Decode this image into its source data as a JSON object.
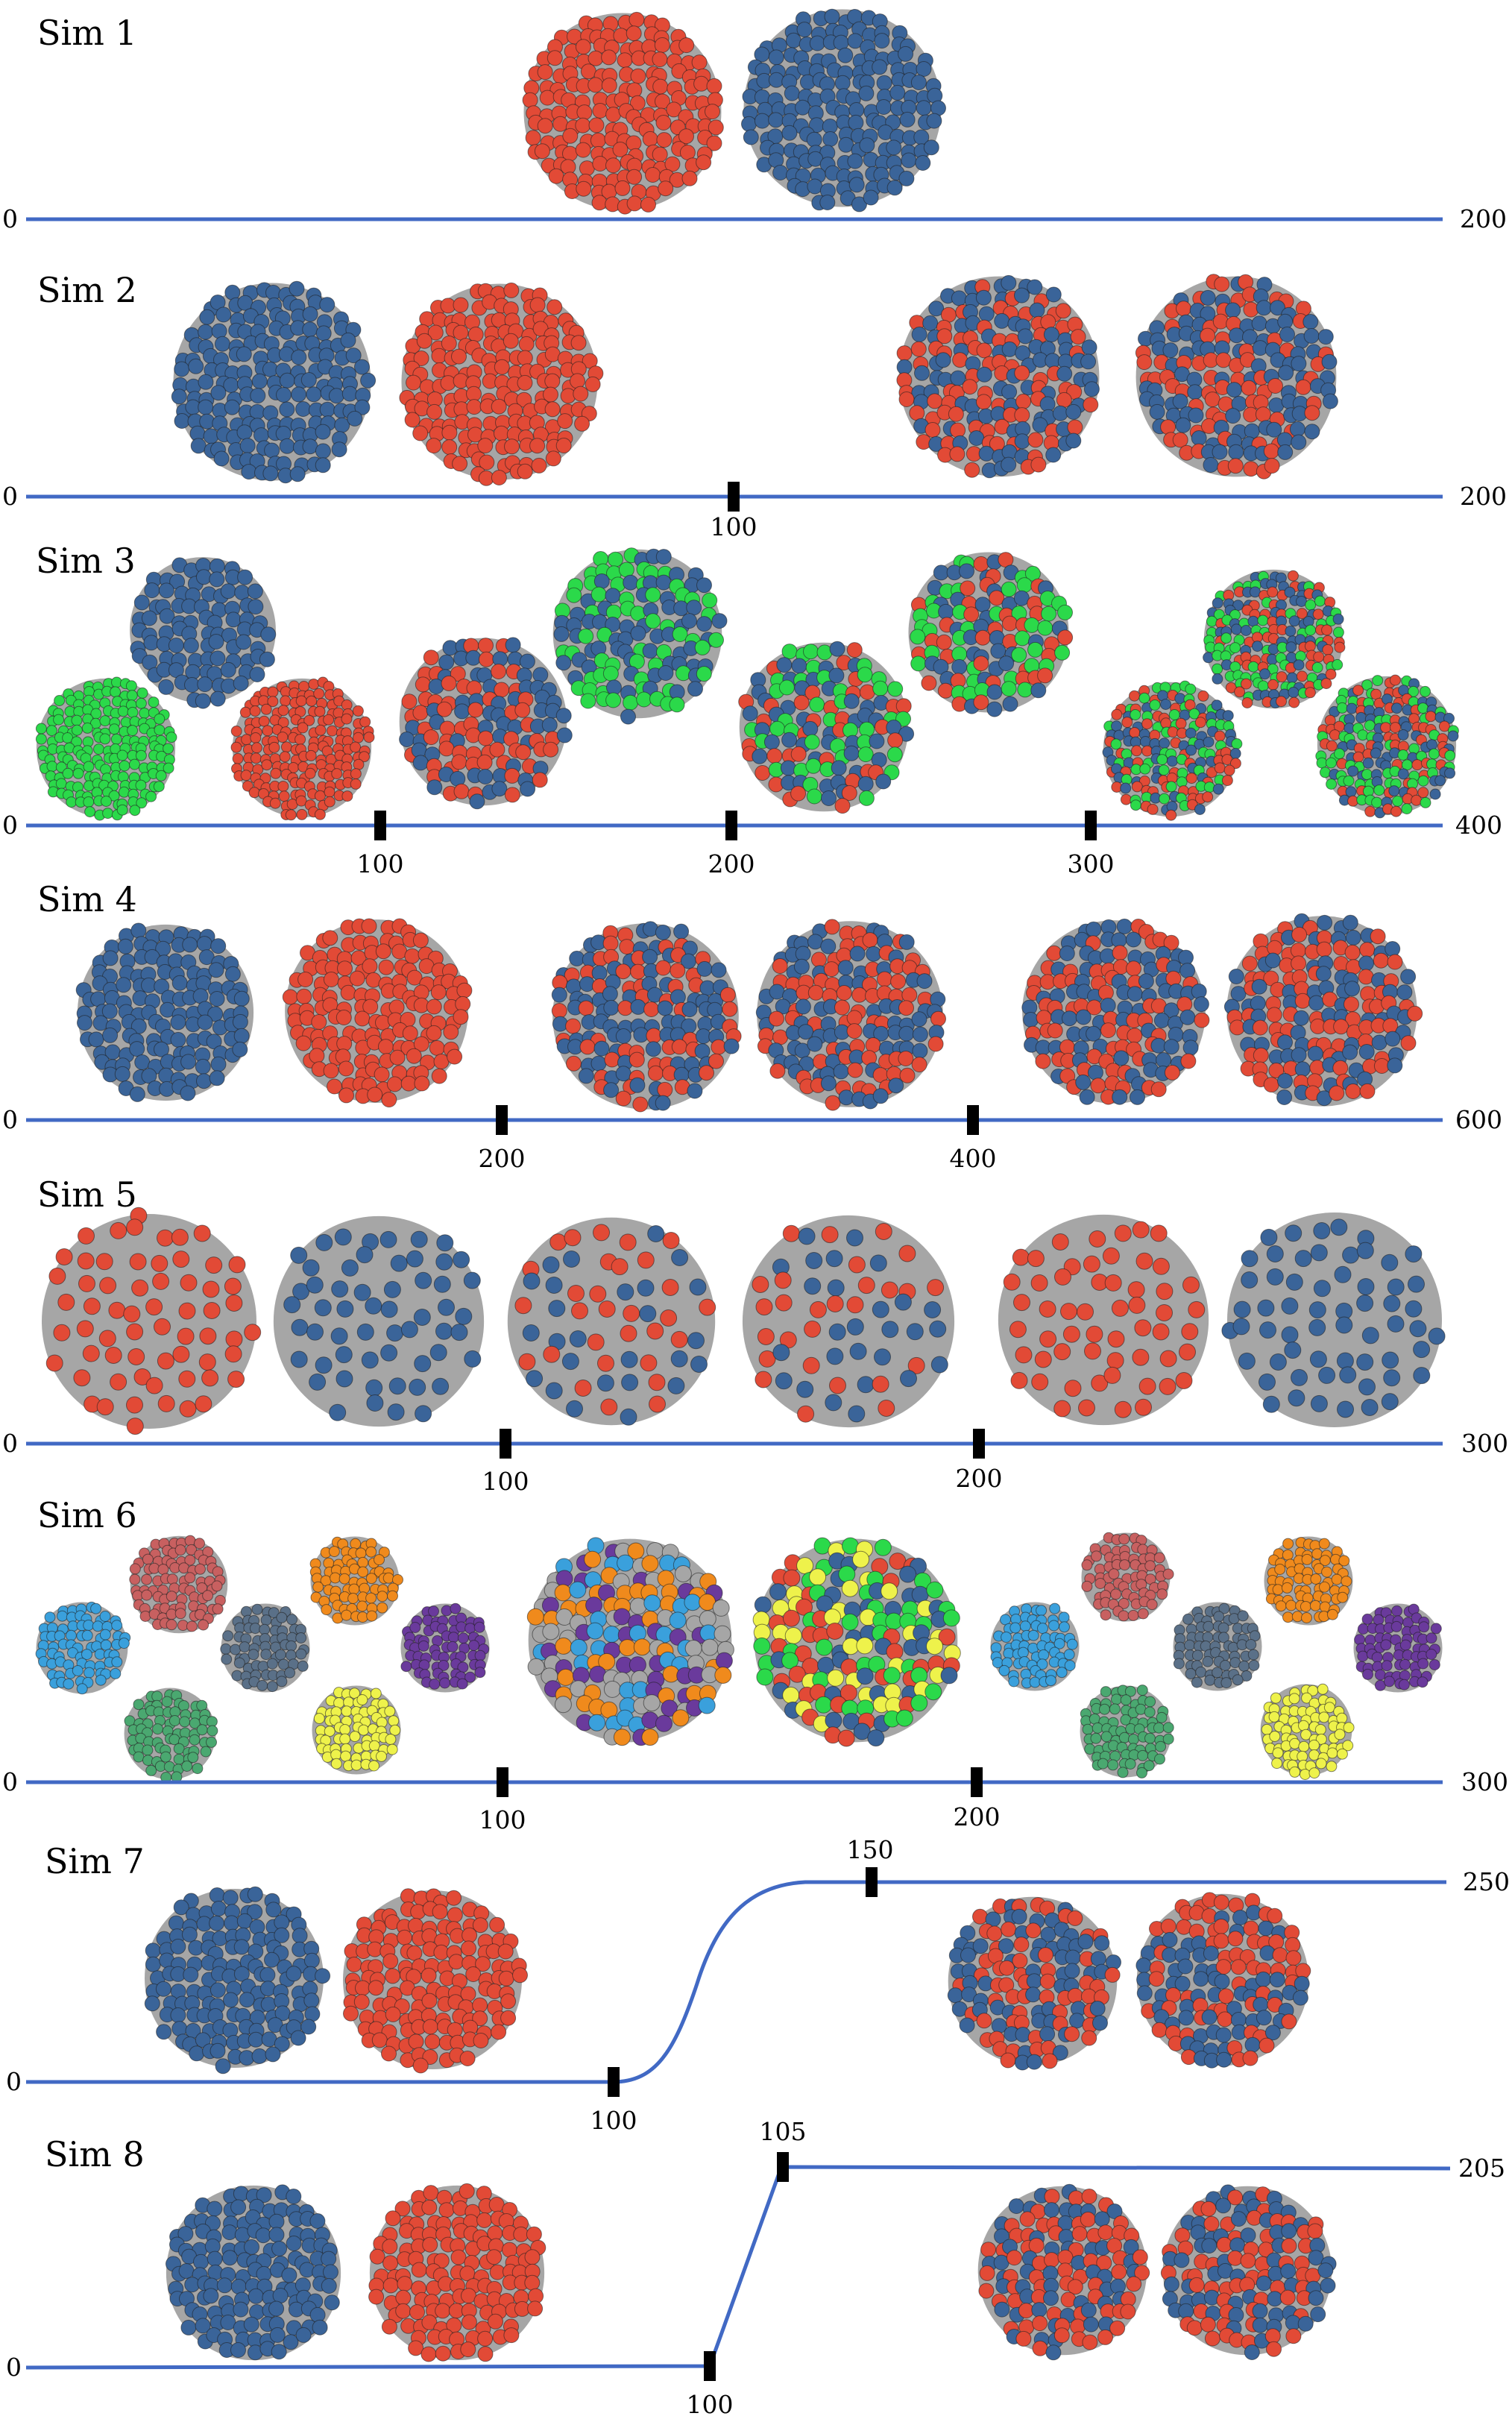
{
  "colors": {
    "blue": "#3a6499",
    "red": "#e24a36",
    "green": "#2bd94a",
    "gray": "#a6a6a6",
    "line": "#4169c4",
    "orange": "#f08a1c",
    "purple": "#6a3a9c",
    "yellow": "#eef24b",
    "lightblue": "#3aa0dc",
    "mutedred": "#c86060",
    "slate": "#5a7088",
    "sea": "#4aa870"
  },
  "sims": [
    {
      "label": "Sim 1",
      "start": "0",
      "end": "200",
      "ticks": [],
      "clusters": [
        {
          "mix": [
            "red"
          ]
        },
        {
          "mix": [
            "blue"
          ]
        }
      ]
    },
    {
      "label": "Sim 2",
      "start": "0",
      "end": "200",
      "ticks": [
        "100"
      ],
      "clusters": [
        {
          "mix": [
            "blue"
          ]
        },
        {
          "mix": [
            "red"
          ]
        },
        {
          "mix": [
            "red",
            "blue"
          ]
        },
        {
          "mix": [
            "red",
            "blue"
          ]
        }
      ]
    },
    {
      "label": "Sim 3",
      "start": "0",
      "end": "400",
      "ticks": [
        "100",
        "200",
        "300"
      ],
      "clusters": [
        {
          "mix": [
            "blue"
          ]
        },
        {
          "mix": [
            "green"
          ]
        },
        {
          "mix": [
            "red"
          ]
        },
        {
          "mix": [
            "blue",
            "red"
          ]
        },
        {
          "mix": [
            "green",
            "blue"
          ]
        },
        {
          "mix": [
            "green",
            "red",
            "blue"
          ]
        },
        {
          "mix": [
            "blue",
            "green",
            "red"
          ]
        },
        {
          "mix": [
            "green",
            "red",
            "blue"
          ]
        },
        {
          "mix": [
            "red",
            "green",
            "blue"
          ]
        },
        {
          "mix": [
            "blue",
            "red",
            "green"
          ]
        }
      ]
    },
    {
      "label": "Sim 4",
      "start": "0",
      "end": "600",
      "ticks": [
        "200",
        "400"
      ],
      "clusters": [
        {
          "mix": [
            "blue"
          ]
        },
        {
          "mix": [
            "red"
          ]
        },
        {
          "mix": [
            "blue",
            "red"
          ]
        },
        {
          "mix": [
            "blue",
            "red"
          ]
        },
        {
          "mix": [
            "blue",
            "red"
          ]
        },
        {
          "mix": [
            "blue",
            "red"
          ]
        }
      ]
    },
    {
      "label": "Sim 5",
      "start": "0",
      "end": "300",
      "ticks": [
        "100",
        "200"
      ],
      "clusters": [
        {
          "mix": [
            "red"
          ]
        },
        {
          "mix": [
            "blue"
          ]
        },
        {
          "mix": [
            "blue",
            "red"
          ]
        },
        {
          "mix": [
            "red",
            "blue"
          ]
        },
        {
          "mix": [
            "red"
          ]
        },
        {
          "mix": [
            "blue"
          ]
        }
      ]
    },
    {
      "label": "Sim 6",
      "start": "0",
      "end": "300",
      "ticks": [
        "100",
        "200"
      ],
      "clusters": [
        {
          "mix": [
            "mutedred"
          ]
        },
        {
          "mix": [
            "orange"
          ]
        },
        {
          "mix": [
            "lightblue"
          ]
        },
        {
          "mix": [
            "slate"
          ]
        },
        {
          "mix": [
            "purple"
          ]
        },
        {
          "mix": [
            "sea"
          ]
        },
        {
          "mix": [
            "yellow"
          ]
        },
        {
          "mix": [
            "purple",
            "orange",
            "lightblue",
            "gray"
          ]
        },
        {
          "mix": [
            "green",
            "red",
            "yellow",
            "blue"
          ]
        },
        {
          "mix": [
            "mutedred"
          ]
        },
        {
          "mix": [
            "orange"
          ]
        },
        {
          "mix": [
            "lightblue"
          ]
        },
        {
          "mix": [
            "slate"
          ]
        },
        {
          "mix": [
            "purple"
          ]
        },
        {
          "mix": [
            "sea"
          ]
        },
        {
          "mix": [
            "yellow"
          ]
        }
      ]
    },
    {
      "label": "Sim 7",
      "start": "0",
      "end": "250",
      "ticks": [
        "100",
        "150"
      ],
      "clusters": [
        {
          "mix": [
            "blue"
          ]
        },
        {
          "mix": [
            "red"
          ]
        },
        {
          "mix": [
            "red",
            "blue"
          ]
        },
        {
          "mix": [
            "blue",
            "red"
          ]
        }
      ]
    },
    {
      "label": "Sim 8",
      "start": "0",
      "end": "205",
      "ticks": [
        "100",
        "105"
      ],
      "clusters": [
        {
          "mix": [
            "blue"
          ]
        },
        {
          "mix": [
            "red"
          ]
        },
        {
          "mix": [
            "red",
            "blue"
          ]
        },
        {
          "mix": [
            "red",
            "blue"
          ]
        }
      ]
    }
  ]
}
